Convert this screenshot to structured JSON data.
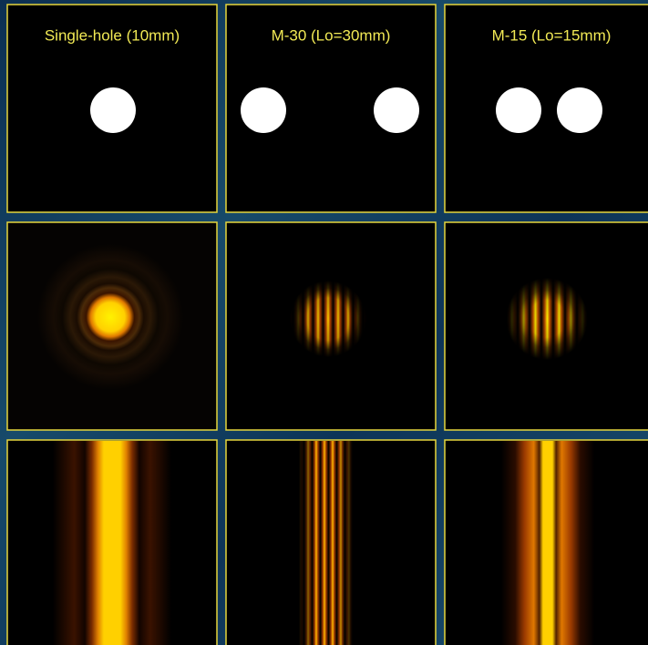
{
  "columns": [
    {
      "title": "Single-hole (10mm)"
    },
    {
      "title": "M-30 (Lo=30mm)"
    },
    {
      "title": "M-15 (Lo=15mm)"
    }
  ]
}
